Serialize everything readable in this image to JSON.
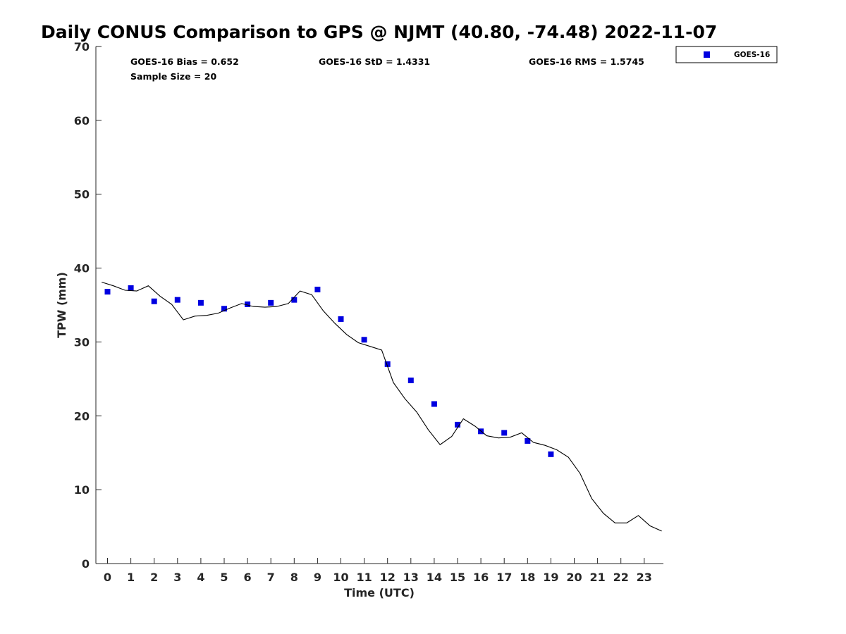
{
  "chart_data": {
    "type": "scatter",
    "title": "Daily CONUS Comparison to GPS @ NJMT (40.80, -74.48) 2022-11-07",
    "xlabel": "Time (UTC)",
    "ylabel": "TPW (mm)",
    "xlim": [
      -0.5,
      23.75
    ],
    "ylim": [
      0,
      70
    ],
    "x_ticks": [
      "0",
      "1",
      "2",
      "3",
      "4",
      "5",
      "6",
      "7",
      "8",
      "9",
      "10",
      "11",
      "12",
      "13",
      "14",
      "15",
      "16",
      "17",
      "18",
      "19",
      "20",
      "21",
      "22",
      "23"
    ],
    "y_ticks": [
      "0",
      "10",
      "20",
      "30",
      "40",
      "50",
      "60",
      "70"
    ],
    "grid": false,
    "legend_position": "top-right, outside plot",
    "stats": {
      "bias": "GOES-16 Bias = 0.652",
      "std": "GOES-16 StD = 1.4331",
      "rms": "GOES-16 RMS = 1.5745",
      "sample": "Sample Size = 20"
    },
    "series": [
      {
        "name": "GOES-16",
        "kind": "markers",
        "color": "#0000e0",
        "x": [
          0,
          1,
          2,
          3,
          4,
          5,
          6,
          7,
          8,
          9,
          10,
          11,
          12,
          13,
          14,
          15,
          16,
          17,
          18,
          19
        ],
        "y": [
          36.8,
          37.3,
          35.5,
          35.7,
          35.3,
          34.5,
          35.1,
          35.3,
          35.7,
          37.1,
          33.1,
          30.3,
          27.0,
          24.8,
          21.6,
          18.8,
          17.9,
          17.7,
          16.6,
          14.8
        ]
      },
      {
        "kind": "line",
        "color": "#000000",
        "x": [
          -0.25,
          0.25,
          0.75,
          1.25,
          1.75,
          2.25,
          2.75,
          3.25,
          3.75,
          4.25,
          4.75,
          5.25,
          5.75,
          6.25,
          6.75,
          7.25,
          7.75,
          8.25,
          8.75,
          9.25,
          9.75,
          10.25,
          10.75,
          11.25,
          11.75,
          12.25,
          12.75,
          13.25,
          13.75,
          14.25,
          14.75,
          15.25,
          15.75,
          16.25,
          16.75,
          17.25,
          17.75,
          18.25,
          18.75,
          19.25,
          19.75,
          20.25,
          20.75,
          21.25,
          21.75,
          22.25,
          22.75,
          23.25,
          23.75
        ],
        "y": [
          38.1,
          37.6,
          37.0,
          36.9,
          37.6,
          36.2,
          35.1,
          33.0,
          33.5,
          33.6,
          33.9,
          34.6,
          35.2,
          34.8,
          34.7,
          34.8,
          35.2,
          36.9,
          36.4,
          34.2,
          32.5,
          31.0,
          29.9,
          29.4,
          28.9,
          24.5,
          22.3,
          20.5,
          18.1,
          16.1,
          17.2,
          19.6,
          18.6,
          17.3,
          17.0,
          17.1,
          17.7,
          16.4,
          16.0,
          15.4,
          14.4,
          12.2,
          8.8,
          6.8,
          5.5,
          5.5,
          6.5,
          5.1,
          4.4
        ]
      }
    ]
  }
}
